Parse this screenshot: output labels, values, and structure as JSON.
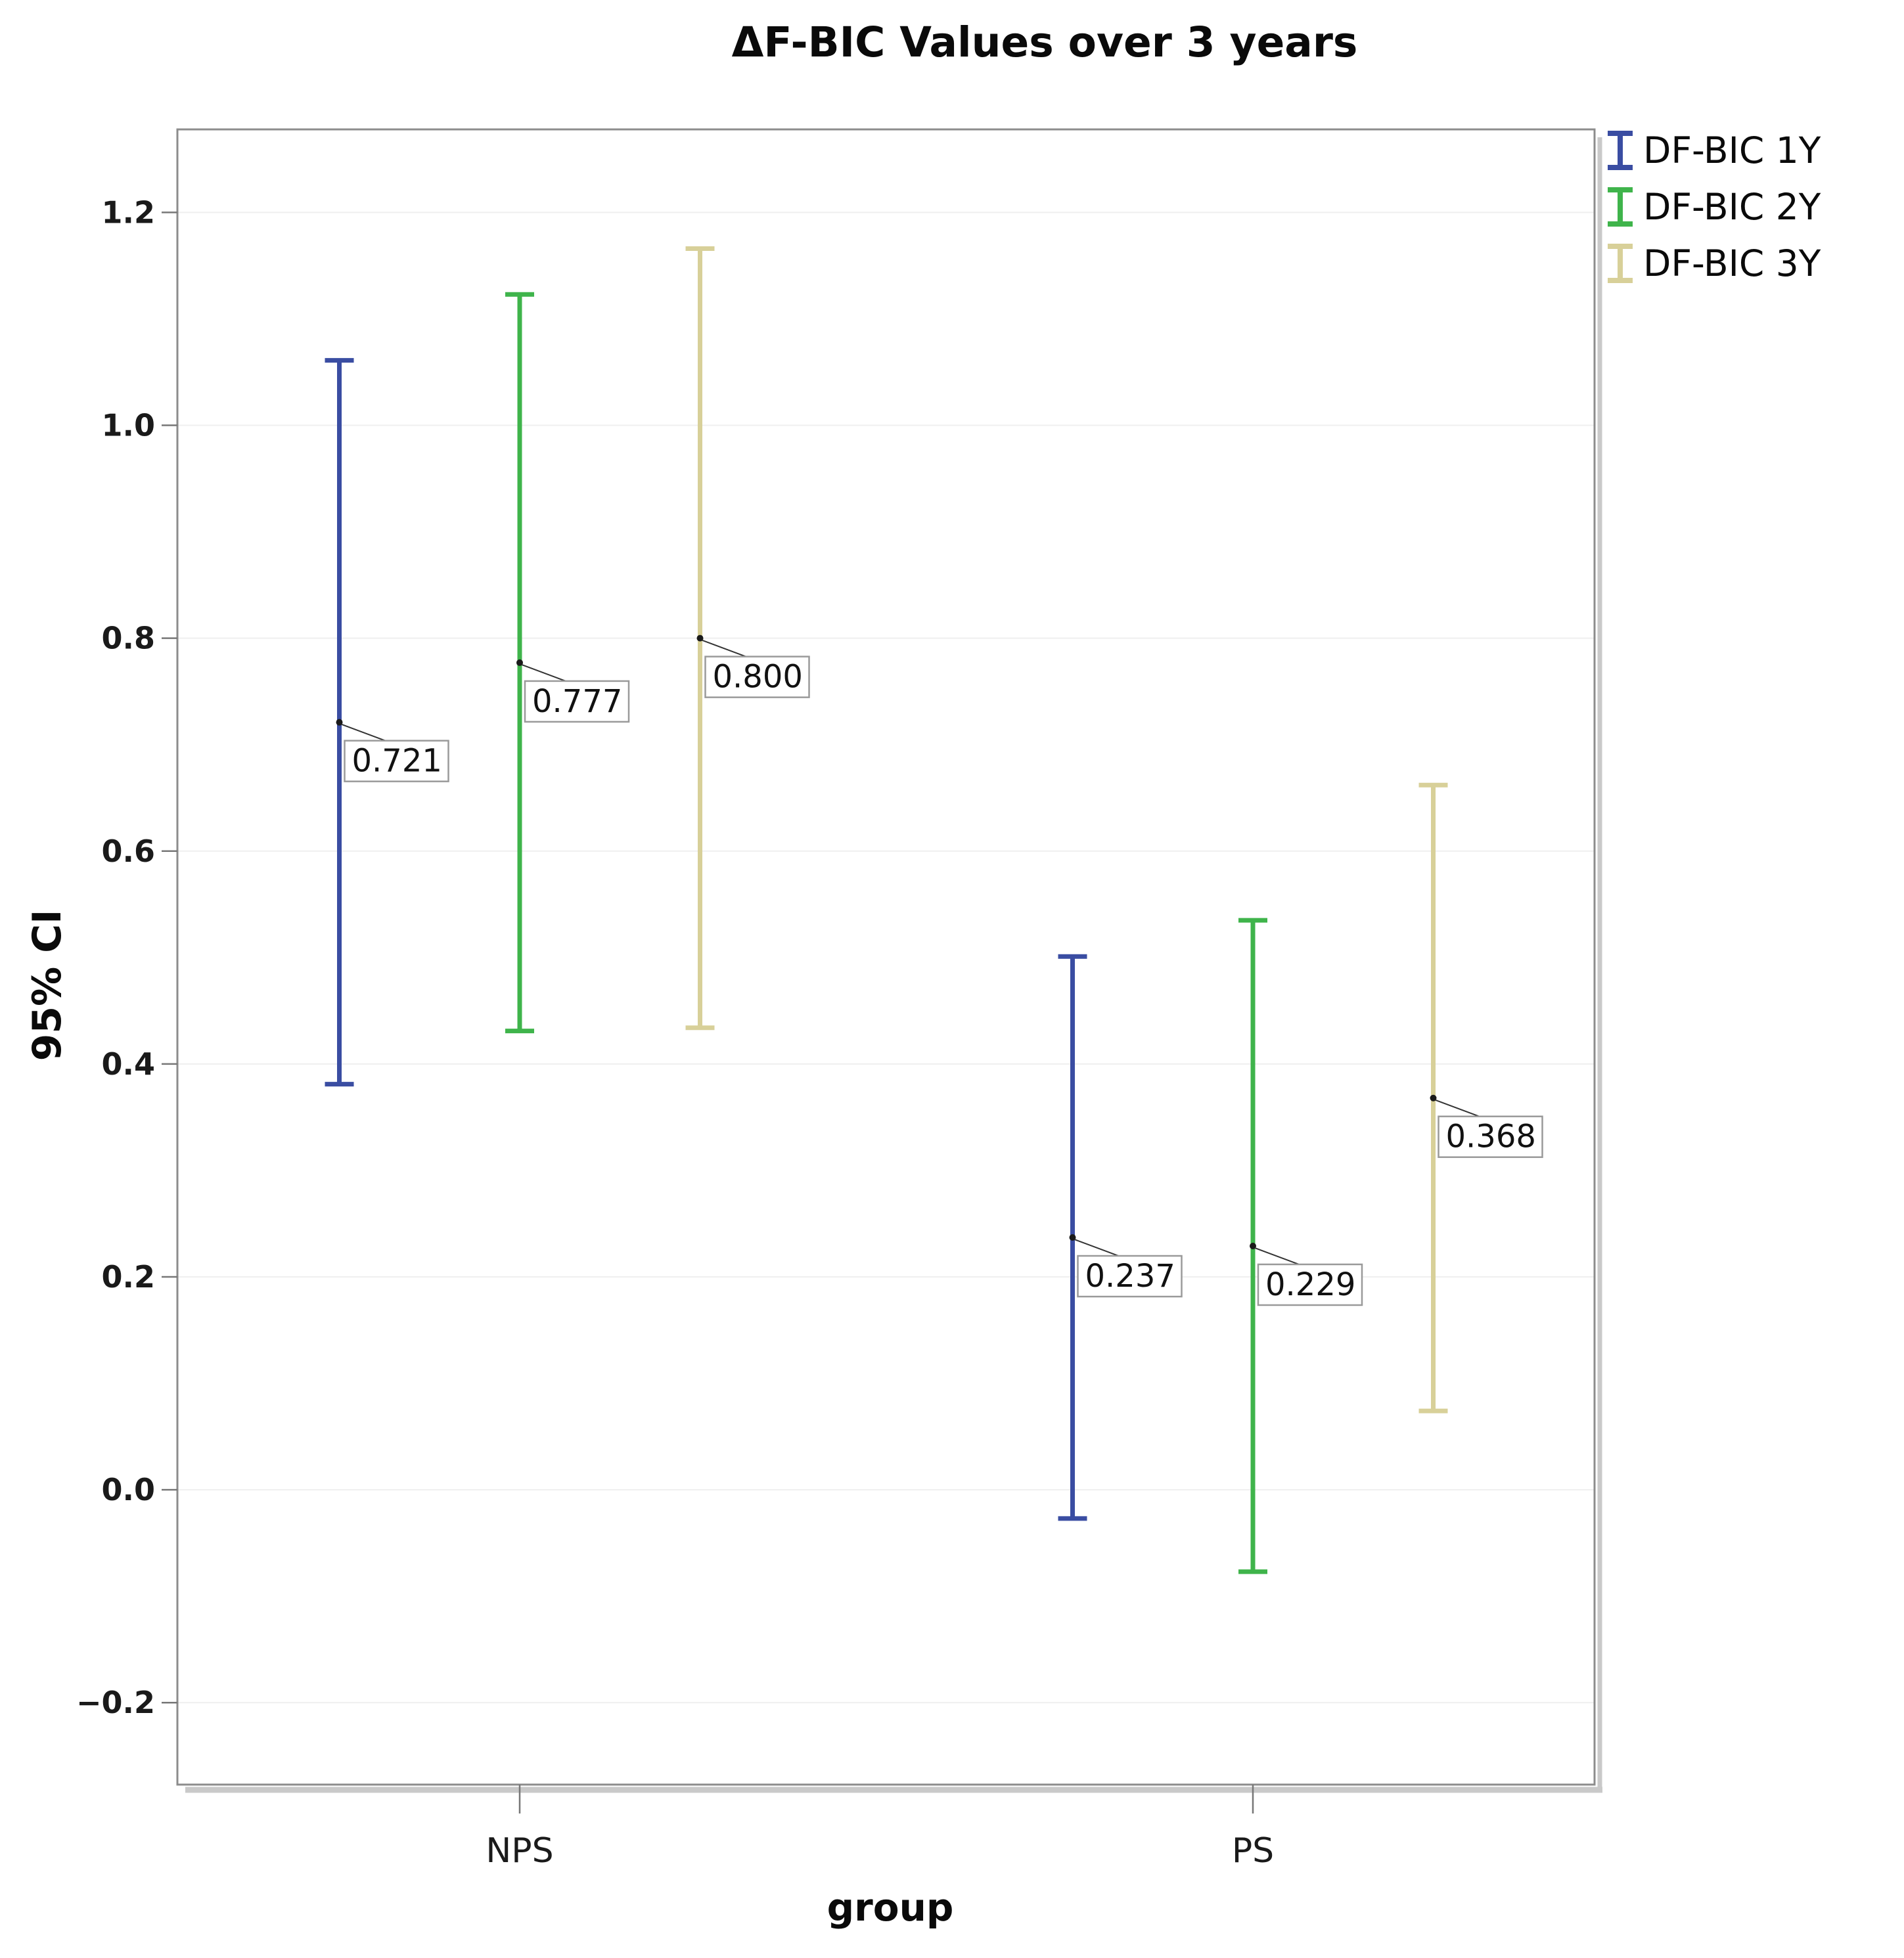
{
  "title": "ΔF-BIC Values over 3 years",
  "axes": {
    "y_title": "95% CI",
    "x_title": "group"
  },
  "legend": {
    "items": [
      {
        "label": "DF-BIC 1Y",
        "color": "#3a4da2"
      },
      {
        "label": "DF-BIC 2Y",
        "color": "#3fb44b"
      },
      {
        "label": "DF-BIC 3Y",
        "color": "#d8d099"
      }
    ]
  },
  "chart_data": {
    "type": "errorbar",
    "title": "ΔF-BIC Values over 3 years",
    "xlabel": "group",
    "ylabel": "95% CI",
    "categories": [
      "NPS",
      "PS"
    ],
    "yticks": [
      1.2,
      1.0,
      0.8,
      0.6,
      0.4,
      0.2,
      0.0,
      -0.2
    ],
    "ylim": [
      -0.277,
      1.278
    ],
    "grid": true,
    "legend_position": "top-right",
    "colors": {
      "frame": "#8c8c8c",
      "gridline": "#efefef",
      "tick": "#777777",
      "shadow": "#c9c9c9",
      "label_box_border": "#9a9a9a",
      "label_text": "#111111",
      "mean_dot": "#1a1a1a"
    },
    "series": [
      {
        "name": "DF-BIC 1Y",
        "color": "#3a4da2",
        "points": [
          {
            "category": "NPS",
            "mean": 0.721,
            "label": "0.721",
            "ci_low": 0.381,
            "ci_high": 1.061
          },
          {
            "category": "PS",
            "mean": 0.237,
            "label": "0.237",
            "ci_low": -0.027,
            "ci_high": 0.501
          }
        ]
      },
      {
        "name": "DF-BIC 2Y",
        "color": "#3fb44b",
        "points": [
          {
            "category": "NPS",
            "mean": 0.777,
            "label": "0.777",
            "ci_low": 0.431,
            "ci_high": 1.123
          },
          {
            "category": "PS",
            "mean": 0.229,
            "label": "0.229",
            "ci_low": -0.077,
            "ci_high": 0.535
          }
        ]
      },
      {
        "name": "DF-BIC 3Y",
        "color": "#d8d099",
        "points": [
          {
            "category": "NPS",
            "mean": 0.8,
            "label": "0.800",
            "ci_low": 0.434,
            "ci_high": 1.166
          },
          {
            "category": "PS",
            "mean": 0.368,
            "label": "0.368",
            "ci_low": 0.074,
            "ci_high": 0.662
          }
        ]
      }
    ]
  }
}
